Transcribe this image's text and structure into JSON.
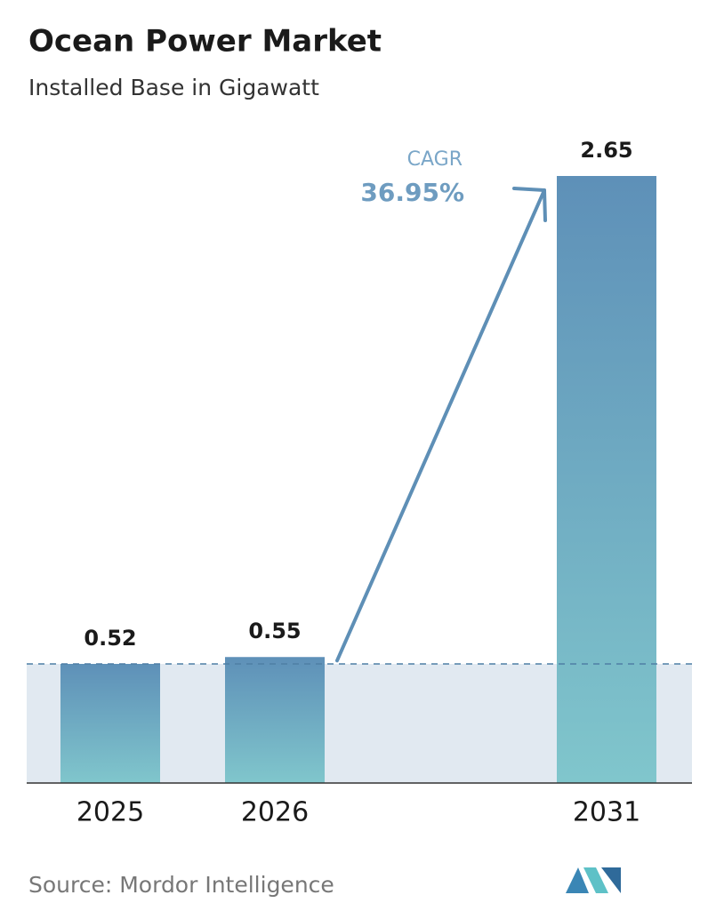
{
  "chart_data": {
    "type": "bar",
    "title": "Ocean Power Market",
    "subtitle": "Installed Base in Gigawatt",
    "categories": [
      "2025",
      "2026",
      "2031"
    ],
    "values": [
      0.52,
      0.55,
      2.65
    ],
    "colors": [
      "#5e90b8",
      "#80c6cc"
    ],
    "annotation": {
      "label": "CAGR",
      "value": "36.95%"
    },
    "source": "Source:  Mordor Intelligence"
  }
}
